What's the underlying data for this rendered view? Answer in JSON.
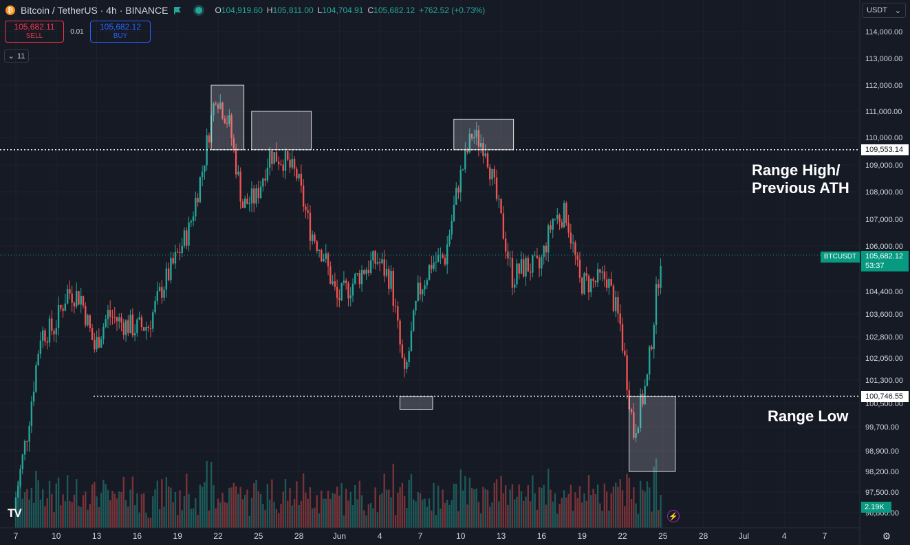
{
  "header": {
    "symbol": "Bitcoin / TetherUS · 4h · BINANCE",
    "open_label": "O",
    "open": "104,919.60",
    "high_label": "H",
    "high": "105,811.00",
    "low_label": "L",
    "low": "104,704.91",
    "close_label": "C",
    "close": "105,682.12",
    "change": "+762.52 (+0.73%)"
  },
  "trade": {
    "sell_price": "105,682.11",
    "sell_label": "SELL",
    "spread": "0.01",
    "buy_price": "105,682.12",
    "buy_label": "BUY"
  },
  "indicators_toggle": "11",
  "currency": "USDT",
  "annotations": {
    "range_high_line1": "Range High/",
    "range_high_line2": "Previous ATH",
    "range_low": "Range Low"
  },
  "price_scale": {
    "ticks": [
      "114,000.00",
      "113,000.00",
      "112,000.00",
      "111,000.00",
      "110,000.00",
      "109,000.00",
      "108,000.00",
      "107,000.00",
      "106,000.00",
      "104,400.00",
      "103,600.00",
      "102,800.00",
      "102,050.00",
      "101,300.00",
      "100,500.00",
      "99,700.00",
      "98,900.00",
      "98,200.00",
      "97,500.00",
      "96,800.00"
    ],
    "range_high_tag": "109,553.14",
    "range_low_tag": "100,746.55",
    "last_price_tag": "105,682.12",
    "countdown": "53:37",
    "symbol_tag": "BTCUSDT",
    "volume_tag": "2.19K"
  },
  "time_axis": [
    "7",
    "10",
    "13",
    "16",
    "19",
    "22",
    "25",
    "28",
    "Jun",
    "4",
    "7",
    "10",
    "13",
    "16",
    "19",
    "22",
    "25",
    "28",
    "Jul",
    "4",
    "7"
  ],
  "colors": {
    "up": "#26a69a",
    "down": "#ef5350",
    "background": "#161a25"
  },
  "icons": [
    "bitcoin-logo-icon",
    "flag-icon",
    "live-dot-icon",
    "chevron-down-icon",
    "tradingview-logo-icon",
    "lightning-icon",
    "gear-icon"
  ],
  "chart_data": {
    "type": "candlestick",
    "symbol": "BTCUSDT",
    "interval": "4h",
    "y_range": [
      96400,
      114400
    ],
    "last_price": 105682.12,
    "range_high": 109553.14,
    "range_low": 100746.55,
    "close_path": [
      {
        "t": "May 7",
        "p": 96900
      },
      {
        "t": "May 8",
        "p": 99500
      },
      {
        "t": "May 9",
        "p": 102900
      },
      {
        "t": "May 10",
        "p": 103100
      },
      {
        "t": "May 11",
        "p": 104400
      },
      {
        "t": "May 12",
        "p": 104200
      },
      {
        "t": "May 13",
        "p": 102400
      },
      {
        "t": "May 14",
        "p": 103600
      },
      {
        "t": "May 15",
        "p": 103300
      },
      {
        "t": "May 16",
        "p": 103100
      },
      {
        "t": "May 17",
        "p": 103200
      },
      {
        "t": "May 18",
        "p": 104500
      },
      {
        "t": "May 19",
        "p": 105500
      },
      {
        "t": "May 20",
        "p": 106600
      },
      {
        "t": "May 21",
        "p": 108800
      },
      {
        "t": "May 22",
        "p": 111700
      },
      {
        "t": "May 23",
        "p": 110500
      },
      {
        "t": "May 24",
        "p": 107500
      },
      {
        "t": "May 25",
        "p": 107800
      },
      {
        "t": "May 26",
        "p": 109400
      },
      {
        "t": "May 27",
        "p": 109200
      },
      {
        "t": "May 28",
        "p": 108600
      },
      {
        "t": "May 29",
        "p": 106600
      },
      {
        "t": "May 30",
        "p": 105700
      },
      {
        "t": "May 31",
        "p": 104100
      },
      {
        "t": "Jun 1",
        "p": 104600
      },
      {
        "t": "Jun 2",
        "p": 105200
      },
      {
        "t": "Jun 3",
        "p": 105500
      },
      {
        "t": "Jun 4",
        "p": 104800
      },
      {
        "t": "Jun 5",
        "p": 101300
      },
      {
        "t": "Jun 6",
        "p": 104300
      },
      {
        "t": "Jun 7",
        "p": 105400
      },
      {
        "t": "Jun 8",
        "p": 105600
      },
      {
        "t": "Jun 9",
        "p": 108300
      },
      {
        "t": "Jun 10",
        "p": 110100
      },
      {
        "t": "Jun 11",
        "p": 109700
      },
      {
        "t": "Jun 12",
        "p": 107300
      },
      {
        "t": "Jun 13",
        "p": 104900
      },
      {
        "t": "Jun 14",
        "p": 105300
      },
      {
        "t": "Jun 15",
        "p": 105200
      },
      {
        "t": "Jun 16",
        "p": 107000
      },
      {
        "t": "Jun 17",
        "p": 107200
      },
      {
        "t": "Jun 18",
        "p": 104700
      },
      {
        "t": "Jun 19",
        "p": 104700
      },
      {
        "t": "Jun 20",
        "p": 104900
      },
      {
        "t": "Jun 21",
        "p": 103200
      },
      {
        "t": "Jun 22",
        "p": 99500
      },
      {
        "t": "Jun 23",
        "p": 101300
      },
      {
        "t": "Jun 24",
        "p": 105682
      }
    ],
    "highlight_boxes": [
      {
        "from": "May 22",
        "to": "May 23",
        "top": 112000,
        "bottom": 109553
      },
      {
        "from": "May 25",
        "to": "May 28",
        "top": 111000,
        "bottom": 109553
      },
      {
        "from": "Jun 9",
        "to": "Jun 12",
        "top": 110700,
        "bottom": 109553
      },
      {
        "from": "Jun 5",
        "to": "Jun 6",
        "top": 100746,
        "bottom": 100300
      },
      {
        "from": "Jun 22",
        "to": "Jun 24",
        "top": 100746,
        "bottom": 98200
      }
    ]
  }
}
